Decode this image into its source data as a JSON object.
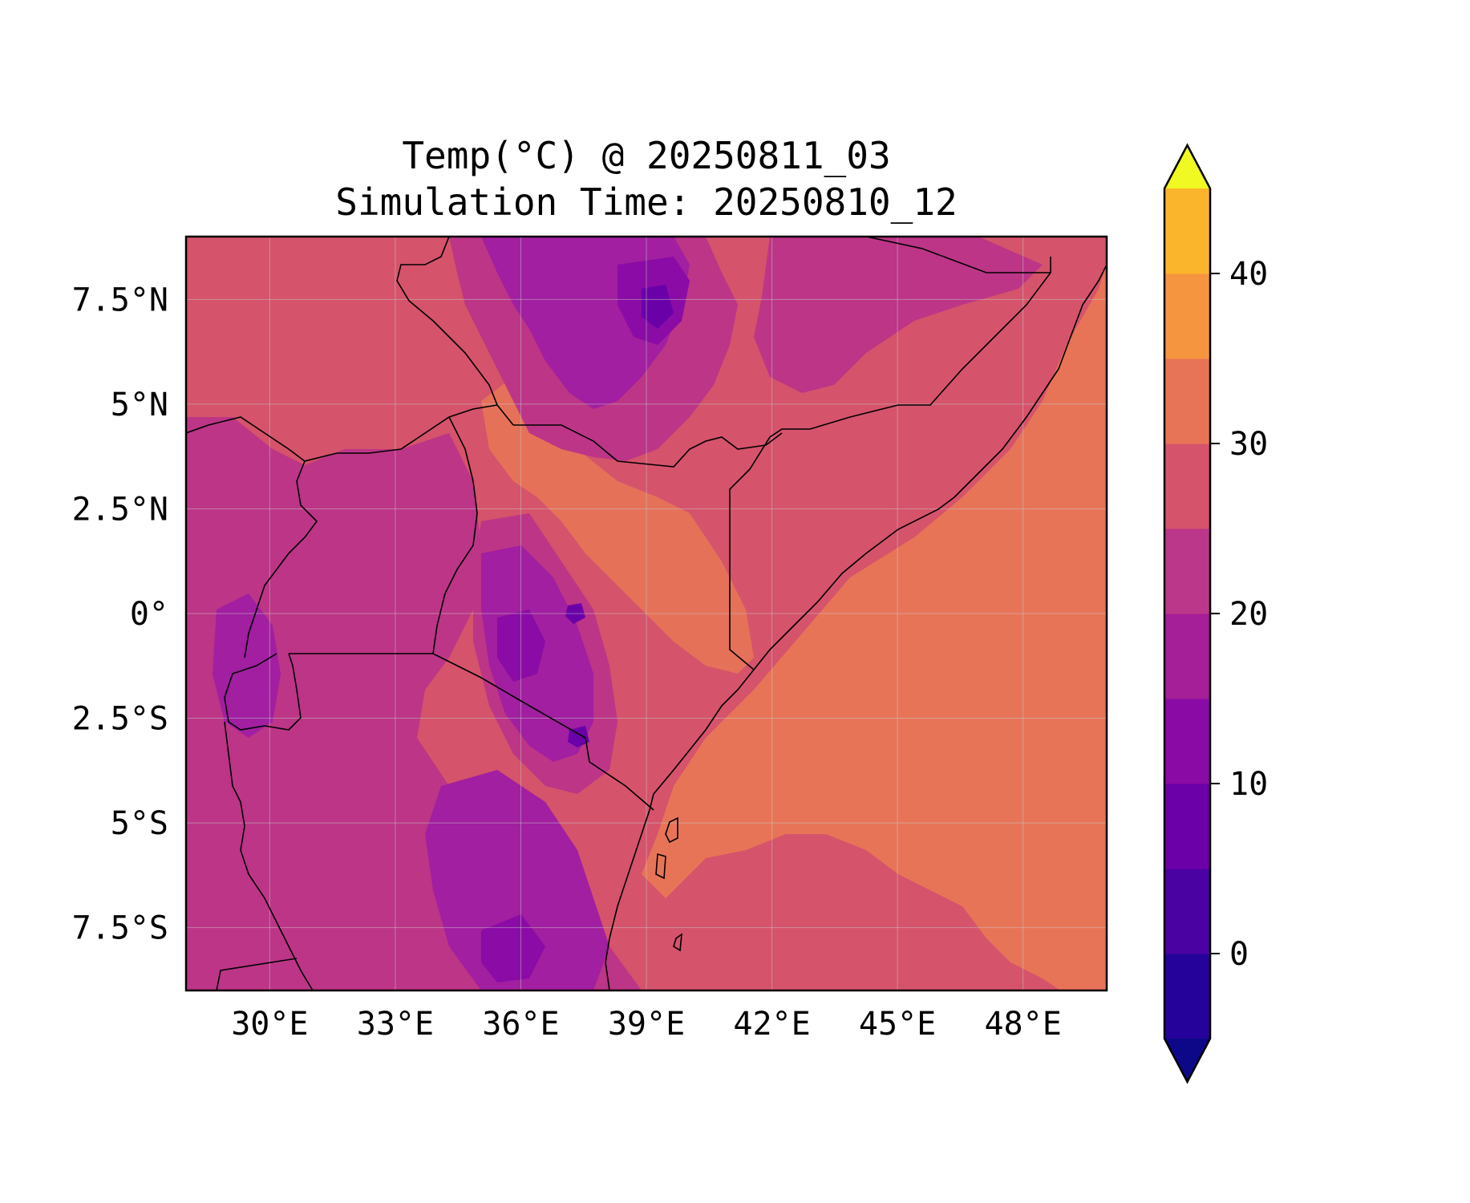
{
  "title": {
    "line1": "Temp(°C) @ 20250811_03",
    "line2": "Simulation Time: 20250810_12"
  },
  "map": {
    "lon_range": [
      28,
      50
    ],
    "lat_range": [
      -9,
      9
    ],
    "xticks": [
      {
        "lon": 30,
        "label": "30°E"
      },
      {
        "lon": 33,
        "label": "33°E"
      },
      {
        "lon": 36,
        "label": "36°E"
      },
      {
        "lon": 39,
        "label": "39°E"
      },
      {
        "lon": 42,
        "label": "42°E"
      },
      {
        "lon": 45,
        "label": "45°E"
      },
      {
        "lon": 48,
        "label": "48°E"
      }
    ],
    "yticks": [
      {
        "lat": 7.5,
        "label": "7.5°N"
      },
      {
        "lat": 5,
        "label": "5°N"
      },
      {
        "lat": 2.5,
        "label": "2.5°N"
      },
      {
        "lat": 0,
        "label": "0°"
      },
      {
        "lat": -2.5,
        "label": "2.5°S"
      },
      {
        "lat": -5,
        "label": "5°S"
      },
      {
        "lat": -7.5,
        "label": "7.5°S"
      }
    ],
    "colors": {
      "ocean_warm": "#e87458",
      "mild": "#d5536b",
      "cool": "#bc3587",
      "cold": "#a11fa0",
      "colder": "#8a0ba5",
      "coldest": "#6a00a8"
    }
  },
  "colorbar": {
    "levels": [
      -5,
      0,
      5,
      10,
      15,
      20,
      25,
      30,
      35,
      40,
      45
    ],
    "colors": [
      "#25039a",
      "#4a02a2",
      "#6c00a8",
      "#8a0aa5",
      "#a51f98",
      "#bb3789",
      "#d5536b",
      "#e87458",
      "#f59540",
      "#fbb52d",
      "#f5dd25"
    ],
    "under_color": "#0d0887",
    "over_color": "#f0f921",
    "ticks": [
      {
        "value": 0,
        "label": "0"
      },
      {
        "value": 10,
        "label": "10"
      },
      {
        "value": 20,
        "label": "20"
      },
      {
        "value": 30,
        "label": "30"
      },
      {
        "value": 40,
        "label": "40"
      }
    ]
  }
}
